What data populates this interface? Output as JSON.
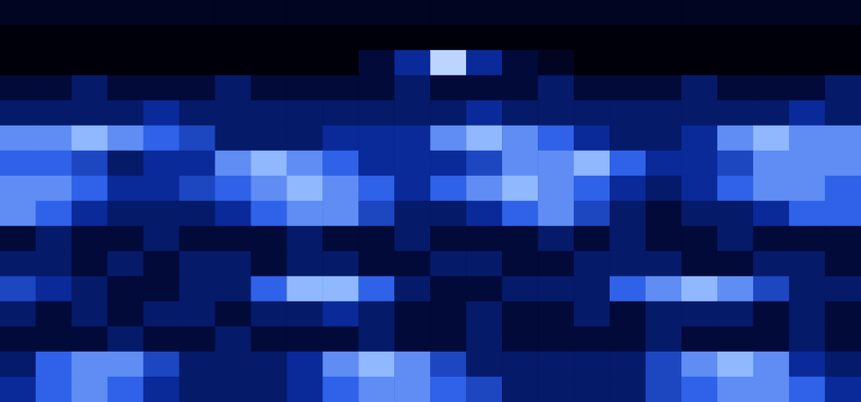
{
  "chart_data": {
    "type": "heatmap",
    "tick_labels": false,
    "color_range": [
      0,
      10
    ],
    "cells": [
      [
        1,
        1,
        1,
        1,
        1,
        1,
        1,
        1,
        1,
        1,
        1,
        1,
        1,
        1,
        1,
        1,
        1,
        1,
        1,
        1,
        1,
        1,
        1,
        1
      ],
      [
        0,
        0,
        0,
        0,
        0,
        0,
        0,
        0,
        0,
        0,
        0,
        0,
        0,
        0,
        0,
        0,
        0,
        0,
        0,
        0,
        0,
        0,
        0,
        0
      ],
      [
        0,
        0,
        0,
        0,
        0,
        0,
        0,
        0,
        0,
        0,
        2,
        4,
        9,
        4,
        2,
        1,
        0,
        0,
        0,
        0,
        0,
        0,
        0,
        0
      ],
      [
        2,
        2,
        3,
        2,
        2,
        2,
        3,
        2,
        2,
        2,
        2,
        3,
        2,
        2,
        2,
        3,
        2,
        2,
        2,
        3,
        2,
        2,
        2,
        3
      ],
      [
        3,
        3,
        3,
        3,
        4,
        3,
        3,
        3,
        3,
        3,
        3,
        3,
        3,
        4,
        3,
        3,
        3,
        3,
        3,
        3,
        3,
        3,
        4,
        3
      ],
      [
        7,
        7,
        8,
        7,
        6,
        5,
        3,
        3,
        3,
        4,
        4,
        4,
        7,
        8,
        7,
        6,
        4,
        3,
        3,
        4,
        7,
        8,
        7,
        7
      ],
      [
        6,
        6,
        5,
        3,
        4,
        4,
        7,
        8,
        7,
        6,
        4,
        4,
        4,
        5,
        7,
        7,
        8,
        6,
        4,
        4,
        5,
        7,
        7,
        7
      ],
      [
        7,
        7,
        6,
        4,
        4,
        5,
        6,
        7,
        8,
        7,
        6,
        4,
        6,
        7,
        8,
        7,
        6,
        4,
        3,
        4,
        6,
        7,
        7,
        6
      ],
      [
        7,
        6,
        4,
        3,
        3,
        3,
        4,
        6,
        7,
        7,
        5,
        3,
        3,
        4,
        6,
        7,
        5,
        3,
        2,
        3,
        3,
        4,
        6,
        6
      ],
      [
        2,
        3,
        2,
        2,
        3,
        2,
        2,
        2,
        3,
        2,
        2,
        3,
        2,
        2,
        2,
        3,
        2,
        3,
        2,
        2,
        3,
        2,
        2,
        2
      ],
      [
        3,
        3,
        2,
        3,
        2,
        3,
        3,
        2,
        3,
        3,
        2,
        2,
        3,
        3,
        2,
        2,
        3,
        3,
        3,
        2,
        2,
        3,
        3,
        2
      ],
      [
        5,
        4,
        3,
        2,
        2,
        3,
        3,
        6,
        8,
        8,
        6,
        3,
        2,
        2,
        3,
        3,
        3,
        6,
        7,
        8,
        7,
        5,
        3,
        3
      ],
      [
        3,
        2,
        3,
        2,
        3,
        3,
        2,
        3,
        3,
        4,
        3,
        2,
        2,
        3,
        2,
        2,
        3,
        2,
        3,
        3,
        3,
        2,
        3,
        2
      ],
      [
        2,
        2,
        2,
        3,
        2,
        2,
        3,
        2,
        2,
        2,
        3,
        2,
        2,
        3,
        2,
        2,
        2,
        2,
        3,
        2,
        2,
        2,
        3,
        2
      ],
      [
        3,
        6,
        7,
        7,
        5,
        3,
        3,
        3,
        4,
        7,
        8,
        7,
        5,
        3,
        3,
        3,
        3,
        3,
        5,
        7,
        8,
        7,
        4,
        3
      ],
      [
        4,
        6,
        7,
        6,
        4,
        3,
        3,
        3,
        4,
        6,
        7,
        7,
        6,
        5,
        3,
        3,
        3,
        3,
        5,
        6,
        7,
        7,
        6,
        4
      ]
    ]
  }
}
